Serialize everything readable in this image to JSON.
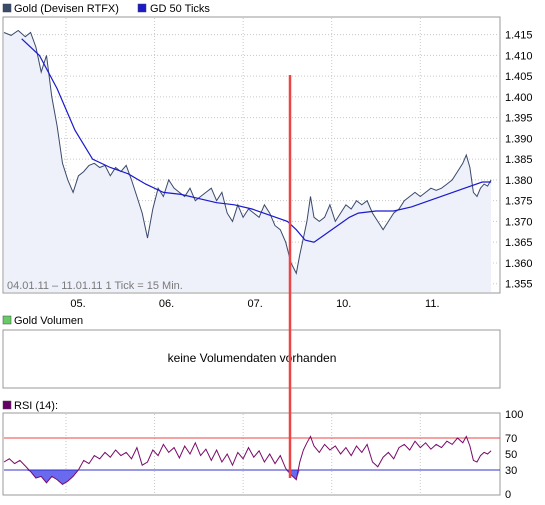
{
  "colors": {
    "price_line": "#3a4a6a",
    "ma_line": "#1a1acc",
    "price_fill": "#eef0fa",
    "grid": "#c8c8c8",
    "marker": "#ee4444",
    "rsi_line": "#7a0a6a",
    "rsi_70": "#ee4444",
    "rsi_30": "#3333cc",
    "rsi_fill_low": "#6a6aee",
    "legend_volume": "#66cc66",
    "legend_rsi": "#660066",
    "legend_price": "#3a4a6a",
    "legend_ma": "#1a1acc"
  },
  "chart_data": [
    {
      "type": "line",
      "title": "",
      "legend": [
        "Gold (Devisen RTFX)",
        "GD 50 Ticks"
      ],
      "range_label": "04.01.11 – 11.01.11   1 Tick = 15 Min.",
      "x_ticks": [
        "05.",
        "06.",
        "07.",
        "10.",
        "11."
      ],
      "x_tick_pos": [
        0.7,
        1.7,
        2.7,
        3.7,
        4.7
      ],
      "x_range": [
        0,
        5.6
      ],
      "y_ticks": [
        "1.415",
        "1.410",
        "1.405",
        "1.400",
        "1.395",
        "1.390",
        "1.385",
        "1.380",
        "1.375",
        "1.370",
        "1.365",
        "1.360",
        "1.355"
      ],
      "ylim": [
        1.353,
        1.419
      ],
      "series": [
        {
          "name": "Gold (Devisen RTFX)",
          "points": [
            [
              0,
              1.4155
            ],
            [
              0.08,
              1.4148
            ],
            [
              0.16,
              1.416
            ],
            [
              0.24,
              1.4145
            ],
            [
              0.3,
              1.4155
            ],
            [
              0.36,
              1.412
            ],
            [
              0.42,
              1.406
            ],
            [
              0.48,
              1.41
            ],
            [
              0.54,
              1.4
            ],
            [
              0.6,
              1.393
            ],
            [
              0.66,
              1.384
            ],
            [
              0.72,
              1.38
            ],
            [
              0.78,
              1.377
            ],
            [
              0.84,
              1.381
            ],
            [
              0.9,
              1.382
            ],
            [
              0.96,
              1.3835
            ],
            [
              1.02,
              1.384
            ],
            [
              1.08,
              1.383
            ],
            [
              1.14,
              1.3835
            ],
            [
              1.2,
              1.381
            ],
            [
              1.26,
              1.383
            ],
            [
              1.32,
              1.382
            ],
            [
              1.38,
              1.3835
            ],
            [
              1.44,
              1.38
            ],
            [
              1.5,
              1.376
            ],
            [
              1.56,
              1.372
            ],
            [
              1.62,
              1.366
            ],
            [
              1.68,
              1.373
            ],
            [
              1.74,
              1.378
            ],
            [
              1.8,
              1.376
            ],
            [
              1.86,
              1.38
            ],
            [
              1.92,
              1.378
            ],
            [
              1.98,
              1.377
            ],
            [
              2.04,
              1.376
            ],
            [
              2.1,
              1.378
            ],
            [
              2.16,
              1.375
            ],
            [
              2.22,
              1.376
            ],
            [
              2.28,
              1.377
            ],
            [
              2.34,
              1.378
            ],
            [
              2.4,
              1.375
            ],
            [
              2.46,
              1.377
            ],
            [
              2.52,
              1.372
            ],
            [
              2.58,
              1.37
            ],
            [
              2.64,
              1.374
            ],
            [
              2.7,
              1.371
            ],
            [
              2.76,
              1.373
            ],
            [
              2.82,
              1.372
            ],
            [
              2.88,
              1.371
            ],
            [
              2.94,
              1.374
            ],
            [
              3.0,
              1.372
            ],
            [
              3.06,
              1.369
            ],
            [
              3.12,
              1.368
            ],
            [
              3.18,
              1.365
            ],
            [
              3.24,
              1.36
            ],
            [
              3.3,
              1.3575
            ],
            [
              3.34,
              1.362
            ],
            [
              3.38,
              1.366
            ],
            [
              3.42,
              1.37
            ],
            [
              3.46,
              1.376
            ],
            [
              3.5,
              1.371
            ],
            [
              3.56,
              1.37
            ],
            [
              3.62,
              1.371
            ],
            [
              3.68,
              1.374
            ],
            [
              3.74,
              1.37
            ],
            [
              3.8,
              1.372
            ],
            [
              3.86,
              1.374
            ],
            [
              3.92,
              1.373
            ],
            [
              3.98,
              1.375
            ],
            [
              4.04,
              1.374
            ],
            [
              4.1,
              1.375
            ],
            [
              4.16,
              1.372
            ],
            [
              4.22,
              1.37
            ],
            [
              4.28,
              1.368
            ],
            [
              4.34,
              1.37
            ],
            [
              4.4,
              1.372
            ],
            [
              4.46,
              1.373
            ],
            [
              4.52,
              1.375
            ],
            [
              4.58,
              1.376
            ],
            [
              4.64,
              1.377
            ],
            [
              4.7,
              1.376
            ],
            [
              4.76,
              1.377
            ],
            [
              4.82,
              1.378
            ],
            [
              4.88,
              1.3775
            ],
            [
              4.94,
              1.378
            ],
            [
              5.0,
              1.379
            ],
            [
              5.06,
              1.38
            ],
            [
              5.12,
              1.382
            ],
            [
              5.18,
              1.384
            ],
            [
              5.22,
              1.386
            ],
            [
              5.26,
              1.383
            ],
            [
              5.3,
              1.377
            ],
            [
              5.34,
              1.376
            ],
            [
              5.38,
              1.378
            ],
            [
              5.42,
              1.379
            ],
            [
              5.46,
              1.3785
            ],
            [
              5.5,
              1.38
            ]
          ]
        },
        {
          "name": "GD 50 Ticks",
          "points": [
            [
              0.2,
              1.414
            ],
            [
              0.4,
              1.41
            ],
            [
              0.6,
              1.402
            ],
            [
              0.8,
              1.392
            ],
            [
              1.0,
              1.385
            ],
            [
              1.2,
              1.383
            ],
            [
              1.4,
              1.3815
            ],
            [
              1.6,
              1.379
            ],
            [
              1.8,
              1.377
            ],
            [
              2.0,
              1.3765
            ],
            [
              2.2,
              1.3755
            ],
            [
              2.4,
              1.3745
            ],
            [
              2.6,
              1.374
            ],
            [
              2.8,
              1.373
            ],
            [
              3.0,
              1.3715
            ],
            [
              3.2,
              1.37
            ],
            [
              3.3,
              1.368
            ],
            [
              3.4,
              1.3655
            ],
            [
              3.5,
              1.365
            ],
            [
              3.6,
              1.3665
            ],
            [
              3.7,
              1.368
            ],
            [
              3.8,
              1.3695
            ],
            [
              3.9,
              1.371
            ],
            [
              4.0,
              1.372
            ],
            [
              4.2,
              1.3725
            ],
            [
              4.4,
              1.3725
            ],
            [
              4.6,
              1.3735
            ],
            [
              4.8,
              1.375
            ],
            [
              5.0,
              1.3765
            ],
            [
              5.2,
              1.378
            ],
            [
              5.4,
              1.3795
            ],
            [
              5.5,
              1.3795
            ]
          ]
        }
      ]
    },
    {
      "type": "bar",
      "title": "",
      "legend": [
        "Gold Volumen"
      ],
      "message": "keine Volumendaten vorhanden"
    },
    {
      "type": "line",
      "title": "",
      "legend": [
        "RSI (14):"
      ],
      "y_ticks": [
        "100",
        "70",
        "50",
        "30",
        "0"
      ],
      "ylim": [
        0,
        100
      ],
      "reference_lines": [
        70,
        30
      ],
      "x_range": [
        0,
        5.6
      ],
      "series": [
        {
          "name": "RSI (14):",
          "points": [
            [
              0,
              40
            ],
            [
              0.06,
              44
            ],
            [
              0.12,
              38
            ],
            [
              0.18,
              42
            ],
            [
              0.24,
              35
            ],
            [
              0.3,
              28
            ],
            [
              0.36,
              20
            ],
            [
              0.42,
              22
            ],
            [
              0.48,
              14
            ],
            [
              0.54,
              22
            ],
            [
              0.6,
              18
            ],
            [
              0.66,
              12
            ],
            [
              0.72,
              16
            ],
            [
              0.78,
              22
            ],
            [
              0.84,
              30
            ],
            [
              0.9,
              42
            ],
            [
              0.96,
              38
            ],
            [
              1.02,
              48
            ],
            [
              1.08,
              44
            ],
            [
              1.14,
              52
            ],
            [
              1.2,
              46
            ],
            [
              1.26,
              55
            ],
            [
              1.32,
              48
            ],
            [
              1.38,
              52
            ],
            [
              1.44,
              44
            ],
            [
              1.5,
              58
            ],
            [
              1.56,
              36
            ],
            [
              1.62,
              40
            ],
            [
              1.68,
              55
            ],
            [
              1.74,
              48
            ],
            [
              1.8,
              62
            ],
            [
              1.86,
              52
            ],
            [
              1.92,
              58
            ],
            [
              1.98,
              45
            ],
            [
              2.04,
              60
            ],
            [
              2.1,
              50
            ],
            [
              2.16,
              64
            ],
            [
              2.22,
              48
            ],
            [
              2.28,
              56
            ],
            [
              2.34,
              42
            ],
            [
              2.4,
              55
            ],
            [
              2.46,
              40
            ],
            [
              2.52,
              50
            ],
            [
              2.58,
              36
            ],
            [
              2.64,
              52
            ],
            [
              2.7,
              44
            ],
            [
              2.76,
              58
            ],
            [
              2.82,
              46
            ],
            [
              2.88,
              54
            ],
            [
              2.94,
              40
            ],
            [
              3.0,
              50
            ],
            [
              3.06,
              38
            ],
            [
              3.12,
              48
            ],
            [
              3.18,
              32
            ],
            [
              3.24,
              24
            ],
            [
              3.3,
              18
            ],
            [
              3.34,
              40
            ],
            [
              3.38,
              55
            ],
            [
              3.42,
              64
            ],
            [
              3.46,
              72
            ],
            [
              3.5,
              60
            ],
            [
              3.56,
              52
            ],
            [
              3.62,
              62
            ],
            [
              3.68,
              55
            ],
            [
              3.74,
              60
            ],
            [
              3.8,
              50
            ],
            [
              3.86,
              58
            ],
            [
              3.92,
              48
            ],
            [
              3.98,
              60
            ],
            [
              4.04,
              52
            ],
            [
              4.1,
              62
            ],
            [
              4.16,
              40
            ],
            [
              4.22,
              34
            ],
            [
              4.28,
              46
            ],
            [
              4.34,
              52
            ],
            [
              4.4,
              44
            ],
            [
              4.46,
              58
            ],
            [
              4.52,
              62
            ],
            [
              4.58,
              55
            ],
            [
              4.64,
              66
            ],
            [
              4.7,
              58
            ],
            [
              4.76,
              64
            ],
            [
              4.82,
              56
            ],
            [
              4.88,
              62
            ],
            [
              4.94,
              58
            ],
            [
              5.0,
              66
            ],
            [
              5.06,
              62
            ],
            [
              5.12,
              70
            ],
            [
              5.18,
              64
            ],
            [
              5.22,
              72
            ],
            [
              5.26,
              60
            ],
            [
              5.3,
              42
            ],
            [
              5.34,
              40
            ],
            [
              5.38,
              48
            ],
            [
              5.42,
              52
            ],
            [
              5.46,
              50
            ],
            [
              5.5,
              54
            ]
          ]
        }
      ]
    }
  ]
}
